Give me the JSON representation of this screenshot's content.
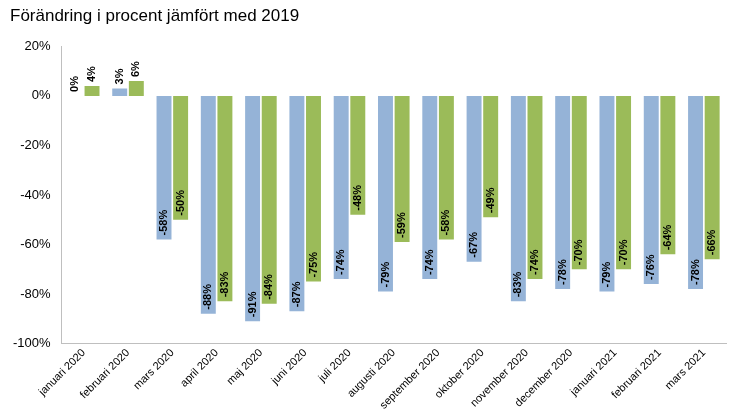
{
  "chart_data": {
    "type": "bar",
    "title": "Förändring i procent jämfört med 2019",
    "categories": [
      "januari 2020",
      "februari 2020",
      "mars 2020",
      "april 2020",
      "maj 2020",
      "juni 2020",
      "juli 2020",
      "augusti 2020",
      "september 2020",
      "oktober 2020",
      "november 2020",
      "december 2020",
      "januari 2021",
      "februari 2021",
      "mars 2021"
    ],
    "series": [
      {
        "color": "#95b3d7",
        "values": [
          0,
          3,
          -58,
          -88,
          -91,
          -87,
          -74,
          -79,
          -74,
          -67,
          -83,
          -78,
          -79,
          -76,
          -78
        ],
        "value_labels": [
          "0%",
          "3%",
          "-58%",
          "-88%",
          "-91%",
          "-87%",
          "-74%",
          "-79%",
          "-74%",
          "-67%",
          "-83%",
          "-78%",
          "-79%",
          "-76%",
          "-78%"
        ]
      },
      {
        "color": "#9bbb59",
        "values": [
          4,
          6,
          -50,
          -83,
          -84,
          -75,
          -48,
          -59,
          -58,
          -49,
          -74,
          -70,
          -70,
          -64,
          -66
        ],
        "value_labels": [
          "4%",
          "6%",
          "-50%",
          "-83%",
          "-84%",
          "-75%",
          "-48%",
          "-59%",
          "-58%",
          "-49%",
          "-74%",
          "-70%",
          "-70%",
          "-64%",
          "-66%"
        ]
      }
    ],
    "ylim": [
      -100,
      20
    ],
    "yticks": [
      {
        "value": -100,
        "label": "-100%"
      },
      {
        "value": -80,
        "label": "-80%"
      },
      {
        "value": -60,
        "label": "-60%"
      },
      {
        "value": -40,
        "label": "-40%"
      },
      {
        "value": -20,
        "label": "-20%"
      },
      {
        "value": 0,
        "label": "0%"
      },
      {
        "value": 20,
        "label": "20%"
      }
    ],
    "grid": false,
    "data_labels": true
  }
}
